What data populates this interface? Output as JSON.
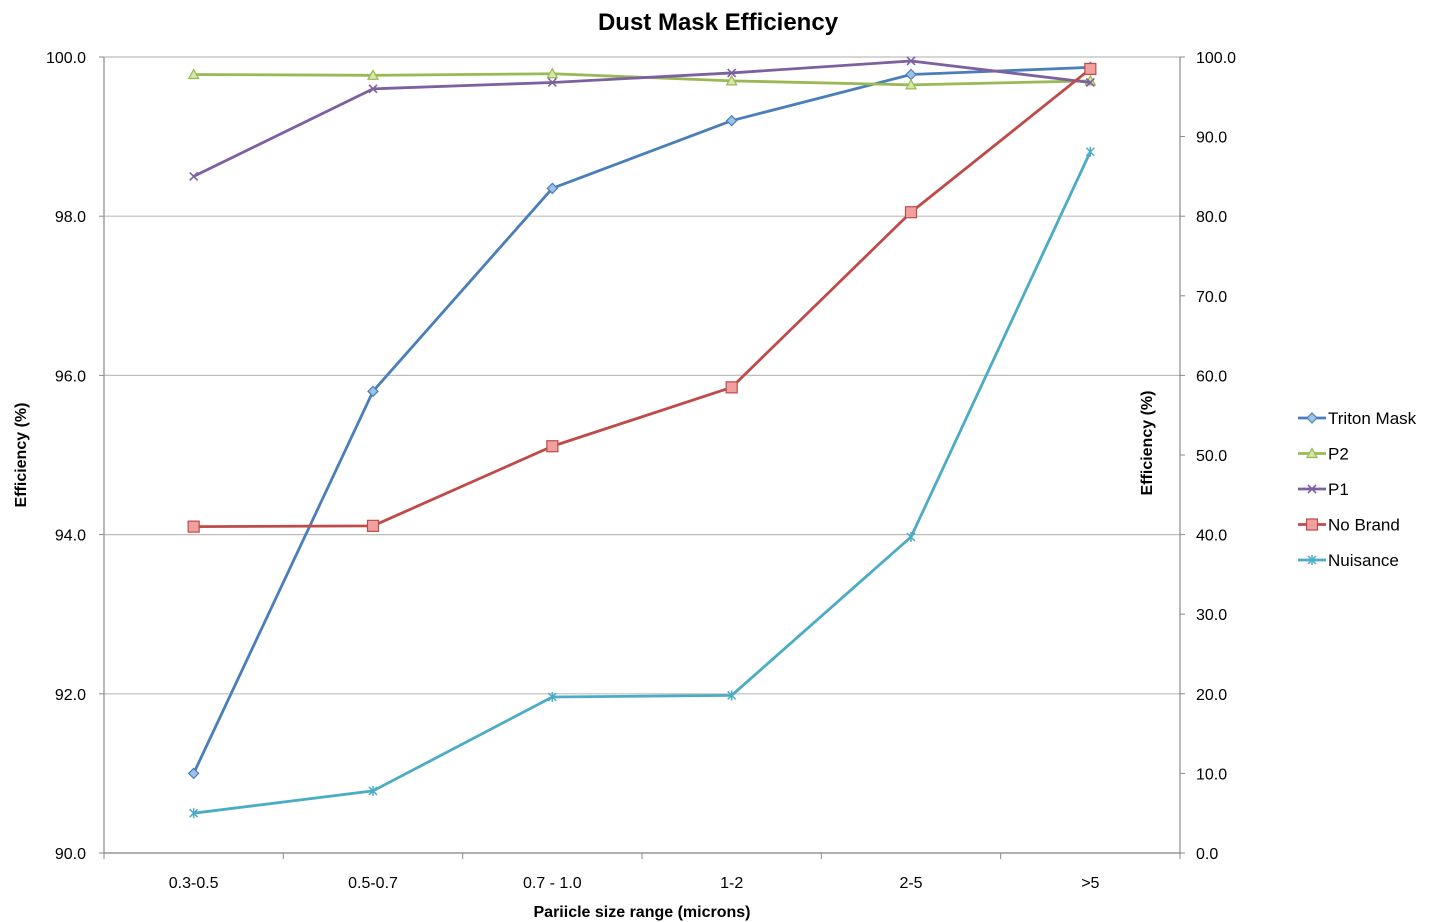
{
  "chart_data": {
    "type": "line",
    "title": "Dust Mask Efficiency",
    "xlabel": "Pariicle size range (microns)",
    "ylabel_left": "Efficiency (%)",
    "ylabel_right": "Efficiency (%)",
    "categories": [
      "0.3-0.5",
      "0.5-0.7",
      "0.7 - 1.0",
      "1-2",
      "2-5",
      ">5"
    ],
    "y_left": {
      "min": 90,
      "max": 100,
      "ticks": [
        "90.0",
        "92.0",
        "94.0",
        "96.0",
        "98.0",
        "100.0"
      ],
      "tick_values": [
        90,
        92,
        94,
        96,
        98,
        100
      ]
    },
    "y_right": {
      "min": 0,
      "max": 100,
      "ticks": [
        "0.0",
        "10.0",
        "20.0",
        "30.0",
        "40.0",
        "50.0",
        "60.0",
        "70.0",
        "80.0",
        "90.0",
        "100.0"
      ],
      "tick_values": [
        0,
        10,
        20,
        30,
        40,
        50,
        60,
        70,
        80,
        90,
        100
      ]
    },
    "grid": true,
    "legend_position": "right",
    "series": [
      {
        "name": "Triton Mask",
        "axis": "left",
        "color": "#4a7ebb",
        "marker": "diamond",
        "values": [
          91.0,
          95.8,
          98.35,
          99.2,
          99.78,
          99.87
        ]
      },
      {
        "name": "P2",
        "axis": "left",
        "color": "#98b954",
        "marker": "triangle",
        "values": [
          99.78,
          99.77,
          99.79,
          99.7,
          99.65,
          99.7
        ]
      },
      {
        "name": "P1",
        "axis": "left",
        "color": "#7d60a0",
        "marker": "x",
        "values": [
          98.5,
          99.6,
          99.68,
          99.8,
          99.95,
          99.68
        ]
      },
      {
        "name": "No Brand",
        "axis": "right",
        "color": "#be4b48",
        "marker": "square",
        "values": [
          41,
          41.1,
          51.1,
          58.5,
          80.5,
          98.5
        ]
      },
      {
        "name": "Nuisance",
        "axis": "right",
        "color": "#4bacc6",
        "marker": "star",
        "values": [
          5,
          7.8,
          19.6,
          19.8,
          39.7,
          88.1
        ]
      }
    ]
  }
}
